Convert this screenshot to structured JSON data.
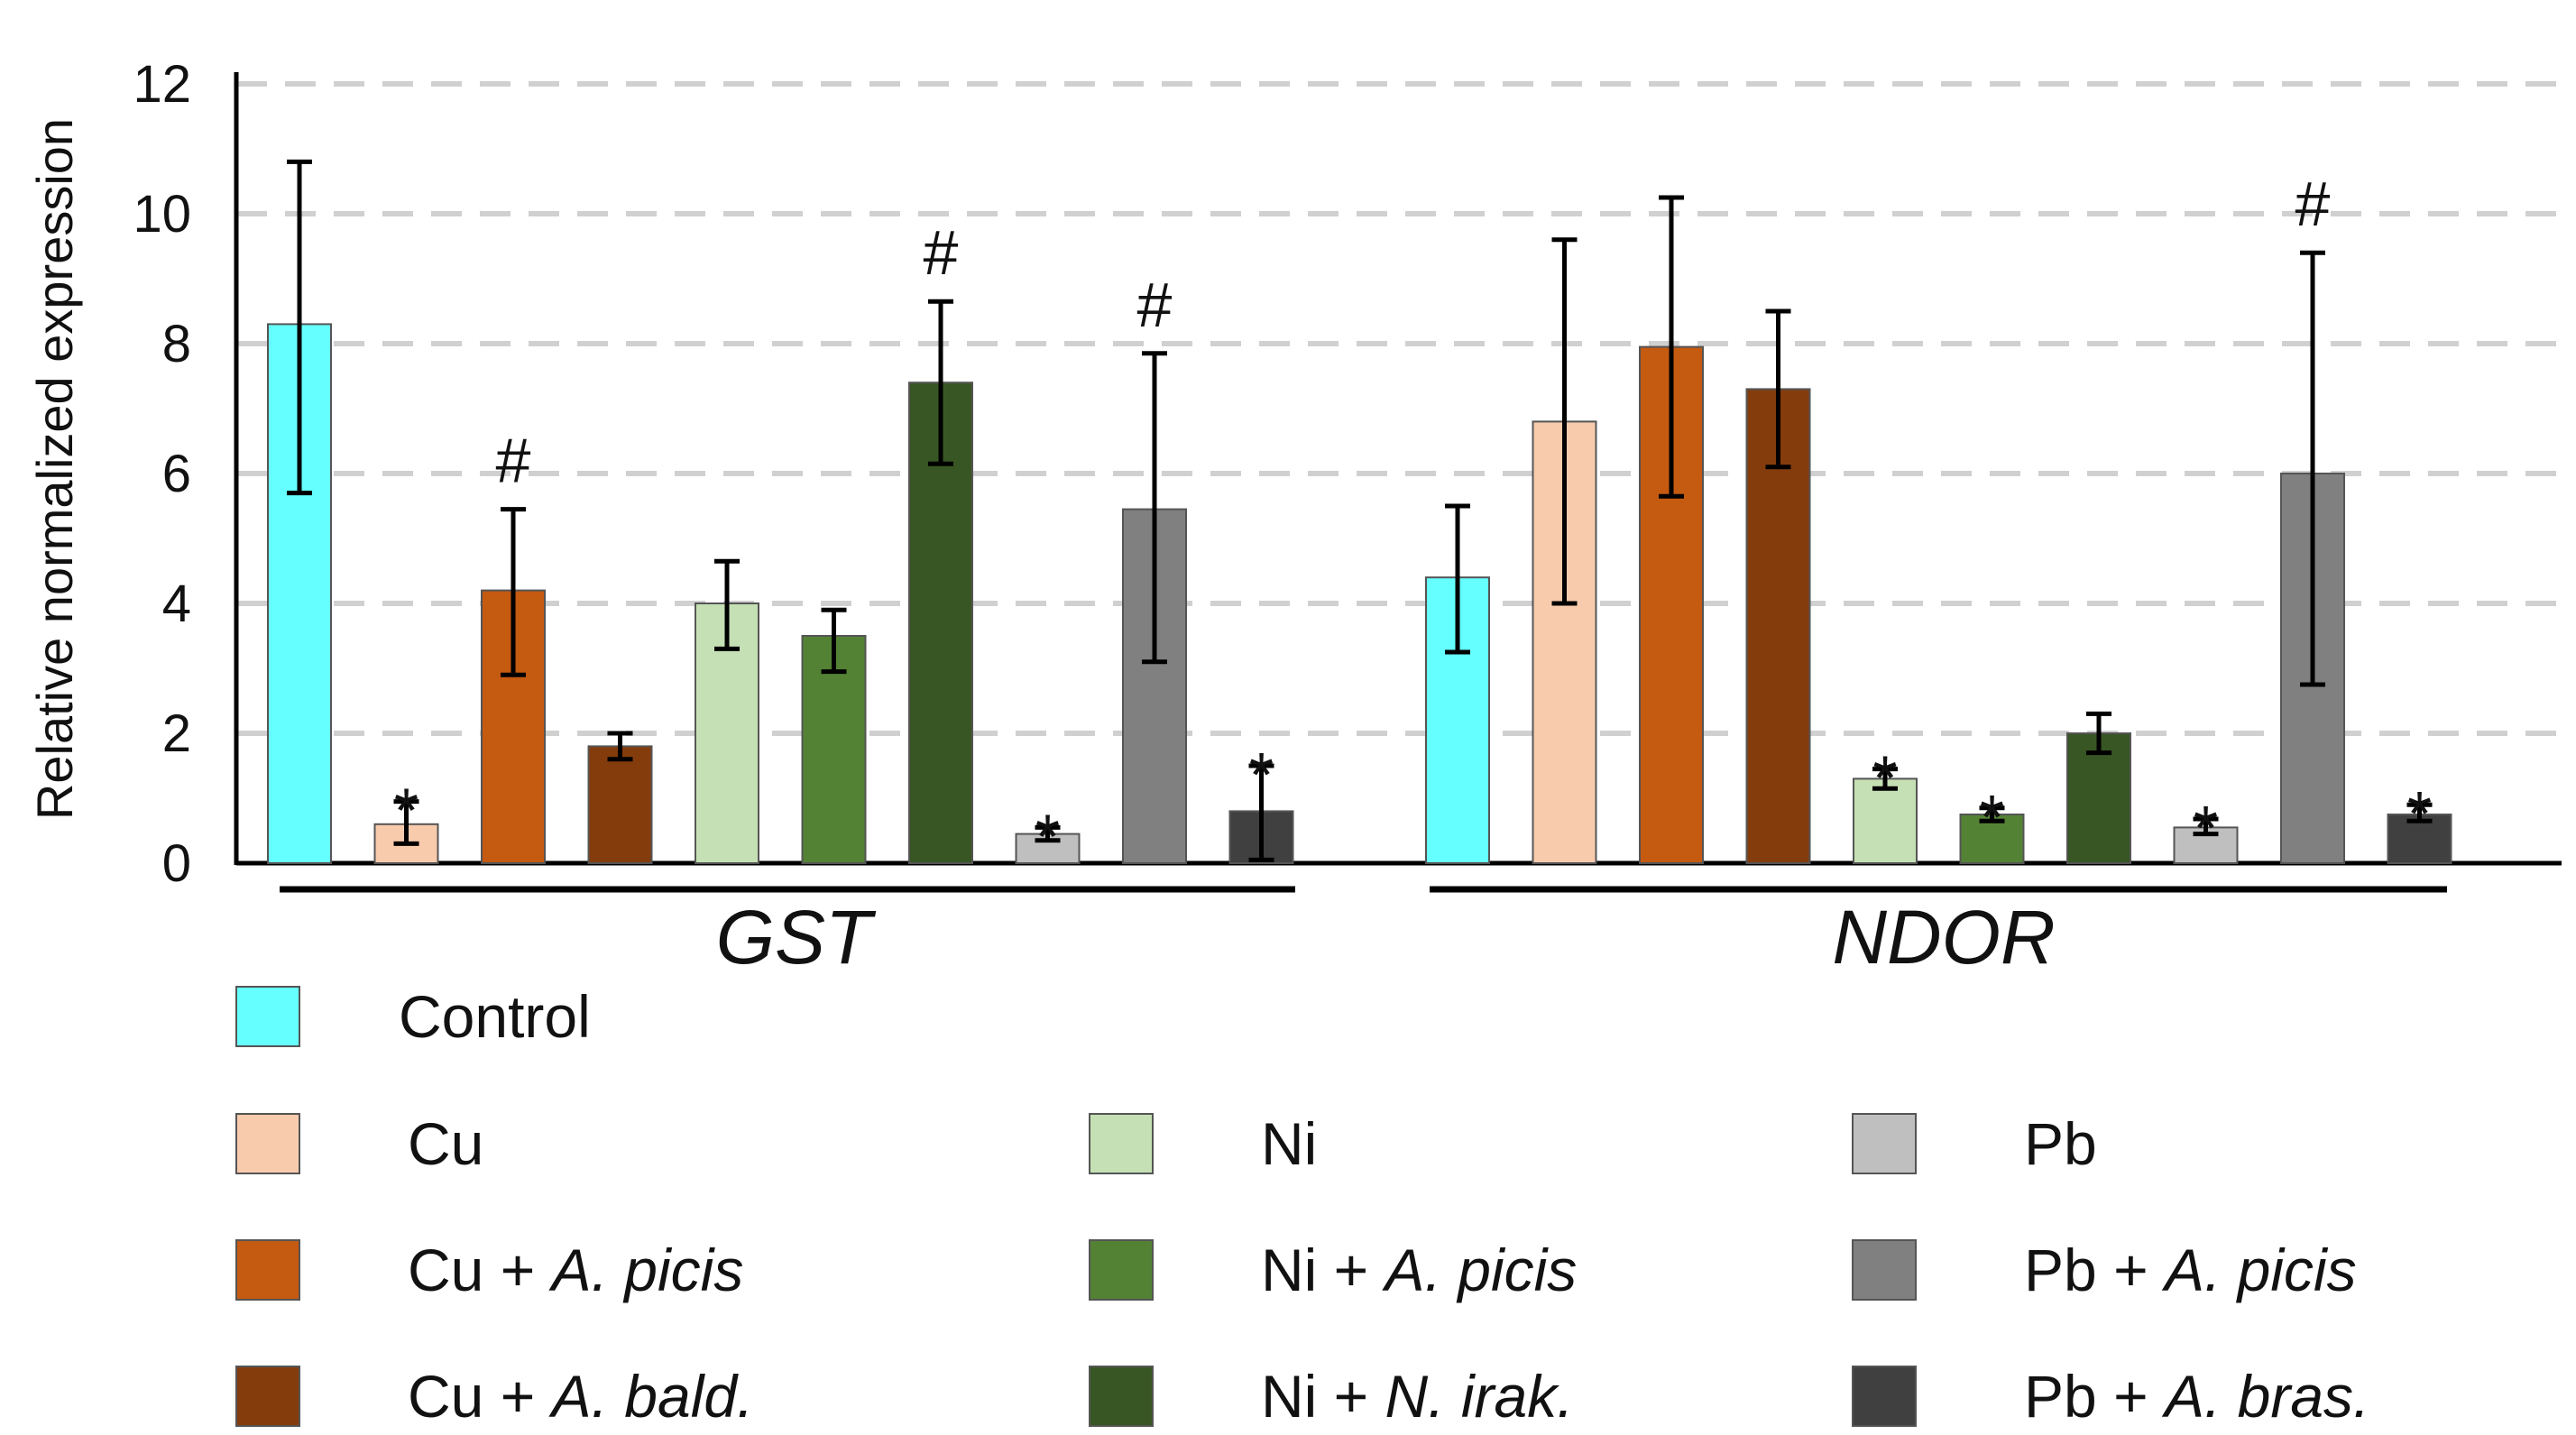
{
  "chart_data": {
    "type": "bar",
    "ylabel": "Relative normalized expression",
    "ylim": [
      0,
      12
    ],
    "yticks": [
      0,
      2,
      4,
      6,
      8,
      10,
      12
    ],
    "grid": "dashed horizontal",
    "groups": [
      {
        "label": "GST",
        "bars": [
          {
            "series": "Control",
            "value": 8.3,
            "err_low": 5.7,
            "err_high": 10.8,
            "mark": ""
          },
          {
            "series": "Cu",
            "value": 0.6,
            "err_low": 0.3,
            "err_high": 0.95,
            "mark": "*"
          },
          {
            "series": "Cu + A. picis",
            "value": 4.2,
            "err_low": 2.9,
            "err_high": 5.45,
            "mark": "#"
          },
          {
            "series": "Cu + A. bald.",
            "value": 1.8,
            "err_low": 1.6,
            "err_high": 2.0,
            "mark": ""
          },
          {
            "series": "Ni",
            "value": 4.0,
            "err_low": 3.3,
            "err_high": 4.65,
            "mark": ""
          },
          {
            "series": "Ni + A. picis",
            "value": 3.5,
            "err_low": 2.95,
            "err_high": 3.9,
            "mark": ""
          },
          {
            "series": "Ni + N. irak.",
            "value": 7.4,
            "err_low": 6.15,
            "err_high": 8.65,
            "mark": "#"
          },
          {
            "series": "Pb",
            "value": 0.45,
            "err_low": 0.35,
            "err_high": 0.55,
            "mark": "*"
          },
          {
            "series": "Pb + A. picis",
            "value": 5.45,
            "err_low": 3.1,
            "err_high": 7.85,
            "mark": "#"
          },
          {
            "series": "Pb + A. bras.",
            "value": 0.8,
            "err_low": 0.05,
            "err_high": 1.5,
            "mark": "*"
          }
        ]
      },
      {
        "label": "NDOR",
        "bars": [
          {
            "series": "Control",
            "value": 4.4,
            "err_low": 3.25,
            "err_high": 5.5,
            "mark": ""
          },
          {
            "series": "Cu",
            "value": 6.8,
            "err_low": 4.0,
            "err_high": 9.6,
            "mark": ""
          },
          {
            "series": "Cu + A. picis",
            "value": 7.95,
            "err_low": 5.65,
            "err_high": 10.25,
            "mark": ""
          },
          {
            "series": "Cu + A. bald.",
            "value": 7.3,
            "err_low": 6.1,
            "err_high": 8.5,
            "mark": ""
          },
          {
            "series": "Ni",
            "value": 1.3,
            "err_low": 1.15,
            "err_high": 1.45,
            "mark": "*"
          },
          {
            "series": "Ni + A. picis",
            "value": 0.75,
            "err_low": 0.65,
            "err_high": 0.85,
            "mark": "*"
          },
          {
            "series": "Ni + N. irak.",
            "value": 2.0,
            "err_low": 1.7,
            "err_high": 2.3,
            "mark": ""
          },
          {
            "series": "Pb",
            "value": 0.55,
            "err_low": 0.45,
            "err_high": 0.68,
            "mark": "*"
          },
          {
            "series": "Pb + A. picis",
            "value": 6.0,
            "err_low": 2.75,
            "err_high": 9.4,
            "mark": "#"
          },
          {
            "series": "Pb + A. bras.",
            "value": 0.75,
            "err_low": 0.65,
            "err_high": 0.9,
            "mark": "*"
          }
        ]
      }
    ],
    "legend": [
      {
        "name": "Control",
        "plain": "Control",
        "italic": "",
        "color": "#66FFFF"
      },
      {
        "name": "Cu",
        "plain": "Cu",
        "italic": "",
        "color": "#F8CBAD"
      },
      {
        "name": "Cu + A. picis",
        "plain": "Cu + ",
        "italic": "A. picis",
        "color": "#C55A11"
      },
      {
        "name": "Cu + A. bald.",
        "plain": "Cu + ",
        "italic": "A. bald.",
        "color": "#843C0C"
      },
      {
        "name": "Ni",
        "plain": "Ni",
        "italic": "",
        "color": "#C5E0B4"
      },
      {
        "name": "Ni + A. picis",
        "plain": "Ni + ",
        "italic": "A. picis",
        "color": "#548235"
      },
      {
        "name": "Ni + N. irak.",
        "plain": "Ni + ",
        "italic": "N. irak.",
        "color": "#375623"
      },
      {
        "name": "Pb",
        "plain": "Pb",
        "italic": "",
        "color": "#BFBFBF"
      },
      {
        "name": "Pb + A. picis",
        "plain": "Pb + ",
        "italic": "A. picis",
        "color": "#808080"
      },
      {
        "name": "Pb + A. bras.",
        "plain": "Pb + ",
        "italic": "A. bras.",
        "color": "#404040"
      }
    ]
  }
}
